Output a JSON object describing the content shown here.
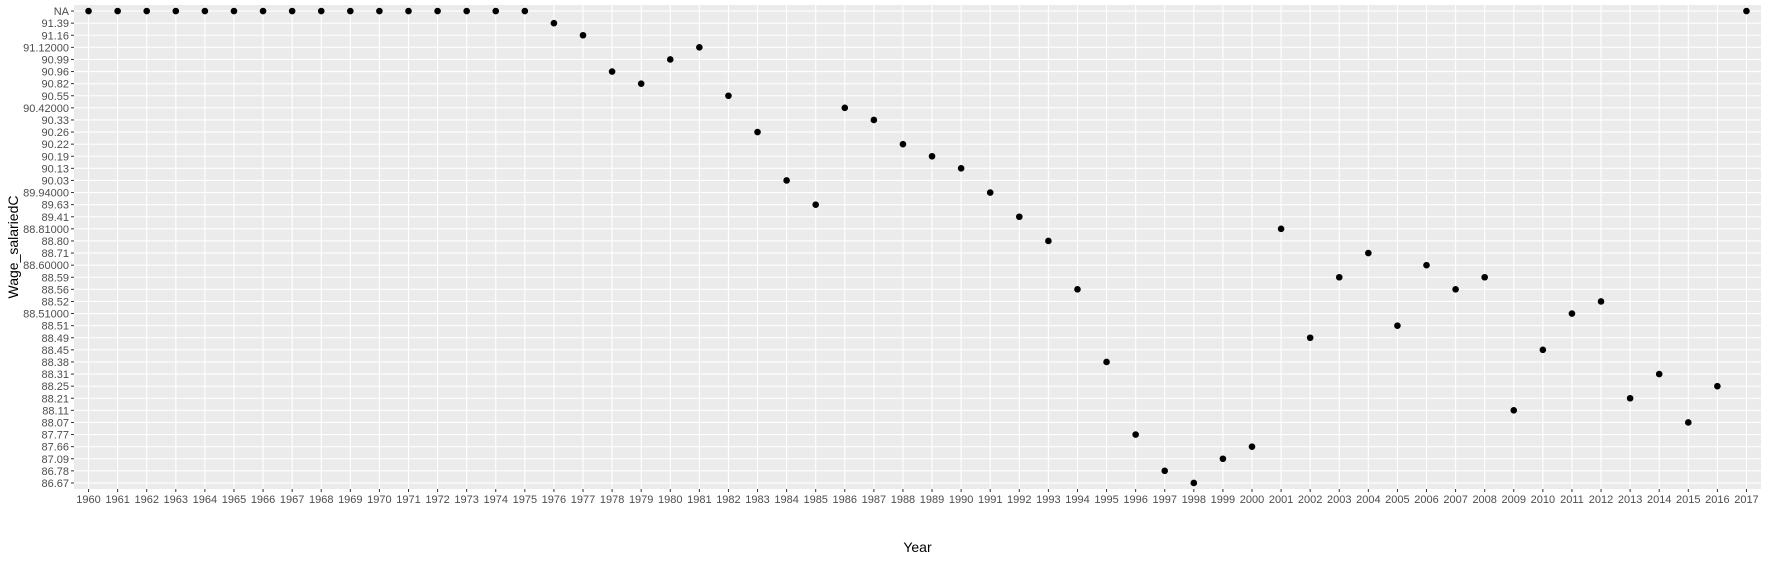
{
  "chart_data": {
    "type": "scatter",
    "title": "",
    "xlabel": "Year",
    "ylabel": "Wage_salariedC",
    "x_axis_type": "categorical",
    "y_axis_type": "categorical",
    "grid": true,
    "legend": "none",
    "colors": {
      "panel": "#ebebeb",
      "grid": "#ffffff",
      "point": "#000000",
      "tick_text": "#4d4d4d"
    },
    "x_categories": [
      "1960",
      "1961",
      "1962",
      "1963",
      "1964",
      "1965",
      "1966",
      "1967",
      "1968",
      "1969",
      "1970",
      "1971",
      "1972",
      "1973",
      "1974",
      "1975",
      "1976",
      "1977",
      "1978",
      "1979",
      "1980",
      "1981",
      "1982",
      "1983",
      "1984",
      "1985",
      "1986",
      "1987",
      "1988",
      "1989",
      "1990",
      "1991",
      "1992",
      "1993",
      "1994",
      "1995",
      "1996",
      "1997",
      "1998",
      "1999",
      "2000",
      "2001",
      "2002",
      "2003",
      "2004",
      "2005",
      "2006",
      "2007",
      "2008",
      "2009",
      "2010",
      "2011",
      "2012",
      "2013",
      "2014",
      "2015",
      "2016",
      "2017"
    ],
    "y_categories": [
      "86.67",
      "86.78",
      "87.09",
      "87.66",
      "87.77",
      "88.07",
      "88.11",
      "88.21",
      "88.25",
      "88.31",
      "88.38",
      "88.45",
      "88.49",
      "88.51",
      "88.51000",
      "88.52",
      "88.56",
      "88.59",
      "88.60000",
      "88.71",
      "88.80",
      "88.81000",
      "89.41",
      "89.63",
      "89.94000",
      "90.03",
      "90.13",
      "90.19",
      "90.22",
      "90.26",
      "90.33",
      "90.42000",
      "90.55",
      "90.82",
      "90.96",
      "90.99",
      "91.12000",
      "91.16",
      "91.39",
      "NA"
    ],
    "points": [
      {
        "x": "1960",
        "y": "NA"
      },
      {
        "x": "1961",
        "y": "NA"
      },
      {
        "x": "1962",
        "y": "NA"
      },
      {
        "x": "1963",
        "y": "NA"
      },
      {
        "x": "1964",
        "y": "NA"
      },
      {
        "x": "1965",
        "y": "NA"
      },
      {
        "x": "1966",
        "y": "NA"
      },
      {
        "x": "1967",
        "y": "NA"
      },
      {
        "x": "1968",
        "y": "NA"
      },
      {
        "x": "1969",
        "y": "NA"
      },
      {
        "x": "1970",
        "y": "NA"
      },
      {
        "x": "1971",
        "y": "NA"
      },
      {
        "x": "1972",
        "y": "NA"
      },
      {
        "x": "1973",
        "y": "NA"
      },
      {
        "x": "1974",
        "y": "NA"
      },
      {
        "x": "1975",
        "y": "NA"
      },
      {
        "x": "1976",
        "y": "91.39"
      },
      {
        "x": "1977",
        "y": "91.16"
      },
      {
        "x": "1978",
        "y": "90.96"
      },
      {
        "x": "1979",
        "y": "90.82"
      },
      {
        "x": "1980",
        "y": "90.99"
      },
      {
        "x": "1981",
        "y": "91.12000"
      },
      {
        "x": "1982",
        "y": "90.55"
      },
      {
        "x": "1983",
        "y": "90.26"
      },
      {
        "x": "1984",
        "y": "90.03"
      },
      {
        "x": "1985",
        "y": "89.63"
      },
      {
        "x": "1986",
        "y": "90.42000"
      },
      {
        "x": "1987",
        "y": "90.33"
      },
      {
        "x": "1988",
        "y": "90.22"
      },
      {
        "x": "1989",
        "y": "90.19"
      },
      {
        "x": "1990",
        "y": "90.13"
      },
      {
        "x": "1991",
        "y": "89.94000"
      },
      {
        "x": "1992",
        "y": "89.41"
      },
      {
        "x": "1993",
        "y": "88.80"
      },
      {
        "x": "1994",
        "y": "88.56"
      },
      {
        "x": "1995",
        "y": "88.38"
      },
      {
        "x": "1996",
        "y": "87.77"
      },
      {
        "x": "1997",
        "y": "86.78"
      },
      {
        "x": "1998",
        "y": "86.67"
      },
      {
        "x": "1999",
        "y": "87.09"
      },
      {
        "x": "2000",
        "y": "87.66"
      },
      {
        "x": "2001",
        "y": "88.81000"
      },
      {
        "x": "2002",
        "y": "88.49"
      },
      {
        "x": "2003",
        "y": "88.59"
      },
      {
        "x": "2004",
        "y": "88.71"
      },
      {
        "x": "2005",
        "y": "88.51"
      },
      {
        "x": "2006",
        "y": "88.60000"
      },
      {
        "x": "2007",
        "y": "88.56"
      },
      {
        "x": "2008",
        "y": "88.59"
      },
      {
        "x": "2009",
        "y": "88.11"
      },
      {
        "x": "2010",
        "y": "88.45"
      },
      {
        "x": "2011",
        "y": "88.51000"
      },
      {
        "x": "2012",
        "y": "88.52"
      },
      {
        "x": "2013",
        "y": "88.21"
      },
      {
        "x": "2014",
        "y": "88.31"
      },
      {
        "x": "2015",
        "y": "88.07"
      },
      {
        "x": "2016",
        "y": "88.25"
      },
      {
        "x": "2017",
        "y": "NA"
      }
    ]
  }
}
